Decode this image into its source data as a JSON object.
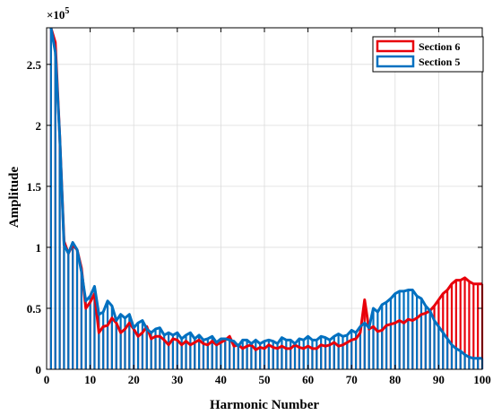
{
  "chart_data": {
    "type": "bar",
    "xlabel": "Harmonic Number",
    "ylabel": "Amplitude",
    "y_multiplier_base": "×10",
    "y_multiplier_exp": "5",
    "xlim": [
      0,
      100
    ],
    "ylim": [
      0,
      2.8
    ],
    "x_ticks": [
      0,
      10,
      20,
      30,
      40,
      50,
      60,
      70,
      80,
      90,
      100
    ],
    "x_tick_labels": [
      "0",
      "10",
      "20",
      "30",
      "40",
      "50",
      "60",
      "70",
      "80",
      "90",
      "100"
    ],
    "y_ticks": [
      0,
      0.5,
      1,
      1.5,
      2,
      2.5
    ],
    "y_tick_labels": [
      "0",
      "0.5",
      "1",
      "1.5",
      "2",
      "2.5"
    ],
    "grid": true,
    "legend_position": "top-right",
    "x": [
      1,
      2,
      3,
      4,
      5,
      6,
      7,
      8,
      9,
      10,
      11,
      12,
      13,
      14,
      15,
      16,
      17,
      18,
      19,
      20,
      21,
      22,
      23,
      24,
      25,
      26,
      27,
      28,
      29,
      30,
      31,
      32,
      33,
      34,
      35,
      36,
      37,
      38,
      39,
      40,
      41,
      42,
      43,
      44,
      45,
      46,
      47,
      48,
      49,
      50,
      51,
      52,
      53,
      54,
      55,
      56,
      57,
      58,
      59,
      60,
      61,
      62,
      63,
      64,
      65,
      66,
      67,
      68,
      69,
      70,
      71,
      72,
      73,
      74,
      75,
      76,
      77,
      78,
      79,
      80,
      81,
      82,
      83,
      84,
      85,
      86,
      87,
      88,
      89,
      90,
      91,
      92,
      93,
      94,
      95,
      96,
      97,
      98,
      99,
      100
    ],
    "series": [
      {
        "name": "Section 6",
        "color": "#e8000b",
        "values": [
          2.8,
          2.68,
          1.92,
          1.05,
          0.95,
          1.02,
          0.98,
          0.83,
          0.5,
          0.55,
          0.62,
          0.3,
          0.35,
          0.36,
          0.42,
          0.38,
          0.3,
          0.33,
          0.38,
          0.33,
          0.27,
          0.3,
          0.35,
          0.25,
          0.27,
          0.27,
          0.24,
          0.2,
          0.25,
          0.24,
          0.2,
          0.23,
          0.2,
          0.22,
          0.24,
          0.21,
          0.2,
          0.23,
          0.2,
          0.22,
          0.24,
          0.27,
          0.19,
          0.2,
          0.17,
          0.19,
          0.2,
          0.16,
          0.18,
          0.17,
          0.2,
          0.18,
          0.17,
          0.19,
          0.17,
          0.17,
          0.2,
          0.18,
          0.17,
          0.19,
          0.17,
          0.17,
          0.2,
          0.19,
          0.2,
          0.22,
          0.19,
          0.2,
          0.22,
          0.24,
          0.25,
          0.3,
          0.57,
          0.33,
          0.35,
          0.31,
          0.32,
          0.36,
          0.37,
          0.38,
          0.4,
          0.38,
          0.41,
          0.4,
          0.42,
          0.45,
          0.46,
          0.48,
          0.52,
          0.57,
          0.62,
          0.65,
          0.7,
          0.73,
          0.73,
          0.75,
          0.72,
          0.7,
          0.7,
          0.7
        ]
      },
      {
        "name": "Section 5",
        "color": "#0070c0",
        "values": [
          2.8,
          2.6,
          1.92,
          1.02,
          0.95,
          1.04,
          0.98,
          0.8,
          0.56,
          0.6,
          0.68,
          0.45,
          0.47,
          0.56,
          0.52,
          0.4,
          0.45,
          0.42,
          0.45,
          0.34,
          0.38,
          0.4,
          0.33,
          0.3,
          0.33,
          0.34,
          0.28,
          0.3,
          0.28,
          0.3,
          0.25,
          0.28,
          0.3,
          0.25,
          0.28,
          0.24,
          0.25,
          0.27,
          0.22,
          0.25,
          0.25,
          0.24,
          0.23,
          0.19,
          0.24,
          0.24,
          0.21,
          0.24,
          0.21,
          0.23,
          0.24,
          0.23,
          0.21,
          0.26,
          0.24,
          0.24,
          0.21,
          0.25,
          0.24,
          0.27,
          0.24,
          0.24,
          0.27,
          0.26,
          0.24,
          0.27,
          0.29,
          0.27,
          0.28,
          0.32,
          0.3,
          0.35,
          0.38,
          0.34,
          0.5,
          0.47,
          0.53,
          0.55,
          0.58,
          0.62,
          0.64,
          0.64,
          0.65,
          0.65,
          0.6,
          0.58,
          0.52,
          0.48,
          0.4,
          0.35,
          0.3,
          0.25,
          0.2,
          0.17,
          0.15,
          0.12,
          0.1,
          0.09,
          0.09,
          0.09
        ]
      }
    ]
  }
}
